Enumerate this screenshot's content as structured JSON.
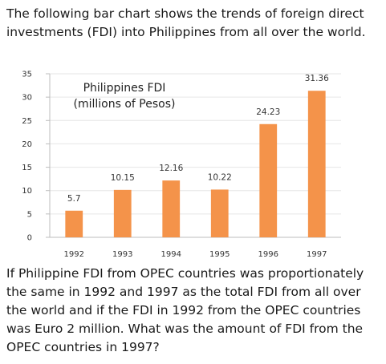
{
  "intro_text": "The following bar chart shows the trends of foreign direct investments (FDI) into Philippines from all over the world.",
  "question_text": "If Philippine FDI from OPEC countries was proportionately the same in 1992 and 1997 as the total FDI from all over the world and if the FDI in 1992 from the OPEC countries was Euro 2 million. What was the amount of FDI from the OPEC countries in 1997?",
  "chart_data": {
    "type": "bar",
    "title_line1": "Philippines FDI",
    "title_line2": "(millions of Pesos)",
    "categories": [
      "1992",
      "1993",
      "1994",
      "1995",
      "1996",
      "1997"
    ],
    "values": [
      5.7,
      10.15,
      12.16,
      10.22,
      24.23,
      31.36
    ],
    "value_labels": [
      "5.7",
      "10.15",
      "12.16",
      "10.22",
      "24.23",
      "31.36"
    ],
    "y_ticks": [
      "0",
      "5",
      "10",
      "15",
      "20",
      "25",
      "30",
      "35"
    ],
    "ylim": [
      0,
      35
    ],
    "grid": true,
    "bar_color": "#f4934a",
    "grid_color": "#e6e6e6",
    "axis_color": "#bdbdbd"
  }
}
